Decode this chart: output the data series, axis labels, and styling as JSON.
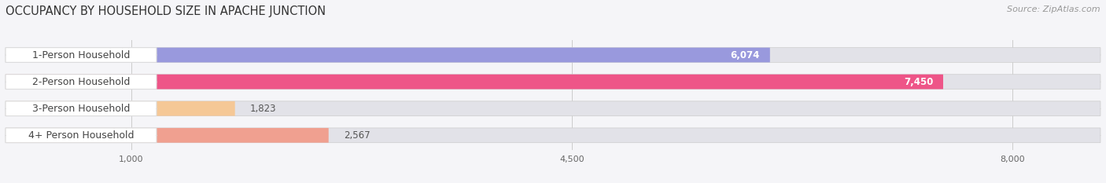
{
  "title": "OCCUPANCY BY HOUSEHOLD SIZE IN APACHE JUNCTION",
  "source": "Source: ZipAtlas.com",
  "categories": [
    "1-Person Household",
    "2-Person Household",
    "3-Person Household",
    "4+ Person Household"
  ],
  "values": [
    6074,
    7450,
    1823,
    2567
  ],
  "bar_colors": [
    "#9999dd",
    "#ee5588",
    "#f5c896",
    "#f0a090"
  ],
  "xlim_max": 8700,
  "xticks": [
    1000,
    4500,
    8000
  ],
  "xtick_labels": [
    "1,000",
    "4,500",
    "8,000"
  ],
  "bg_color": "#f5f5f8",
  "bar_bg_color": "#e2e2e8",
  "title_fontsize": 10.5,
  "source_fontsize": 8,
  "label_fontsize": 9,
  "value_fontsize": 8.5,
  "bar_height": 0.55,
  "label_pill_color": "#ffffff",
  "label_text_color": "#444444",
  "grid_color": "#cccccc",
  "figsize": [
    14.06,
    2.33
  ],
  "dpi": 100
}
